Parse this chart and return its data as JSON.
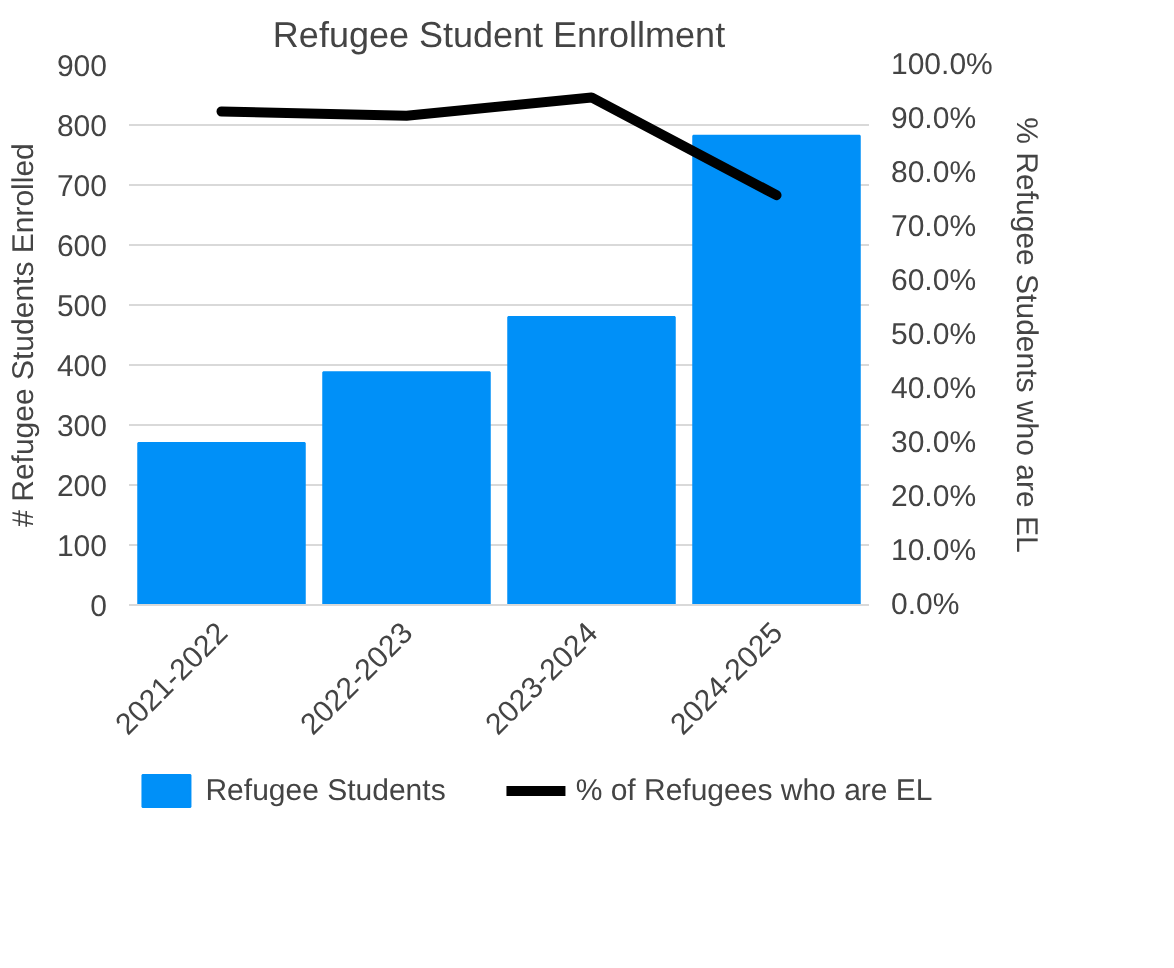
{
  "chart_data": {
    "type": "bar",
    "title": "Refugee Student Enrollment",
    "ylabel": "# Refugee Students Enrolled",
    "y2label": "% Refugee Students who are EL",
    "categories": [
      "2021-2022",
      "2022-2023",
      "2023-2024",
      "2024-2025"
    ],
    "series": [
      {
        "name": "Refugee Students",
        "color": "#0090f8",
        "values": [
          270,
          388,
          480,
          782
        ]
      },
      {
        "name": "% of Refugees who are EL",
        "color": "#000000",
        "type": "line",
        "axis": "y2",
        "values": [
          91.4,
          90.6,
          94.0,
          75.9
        ]
      }
    ],
    "ylim": [
      0,
      900
    ],
    "yticks": [
      0,
      100,
      200,
      300,
      400,
      500,
      600,
      700,
      800,
      900
    ],
    "y2lim": [
      0,
      100
    ],
    "y2ticks": [
      {
        "value": 0,
        "label": "0.0%"
      },
      {
        "value": 10,
        "label": "10.0%"
      },
      {
        "value": 20,
        "label": "20.0%"
      },
      {
        "value": 30,
        "label": "30.0%"
      },
      {
        "value": 40,
        "label": "40.0%"
      },
      {
        "value": 50,
        "label": "50.0%"
      },
      {
        "value": 60,
        "label": "60.0%"
      },
      {
        "value": 70,
        "label": "70.0%"
      },
      {
        "value": 80,
        "label": "80.0%"
      },
      {
        "value": 90,
        "label": "90.0%"
      },
      {
        "value": 100,
        "label": "100.0%"
      }
    ],
    "grid": "y",
    "legend": "bottom",
    "marker": "none",
    "line_style": "solid"
  }
}
